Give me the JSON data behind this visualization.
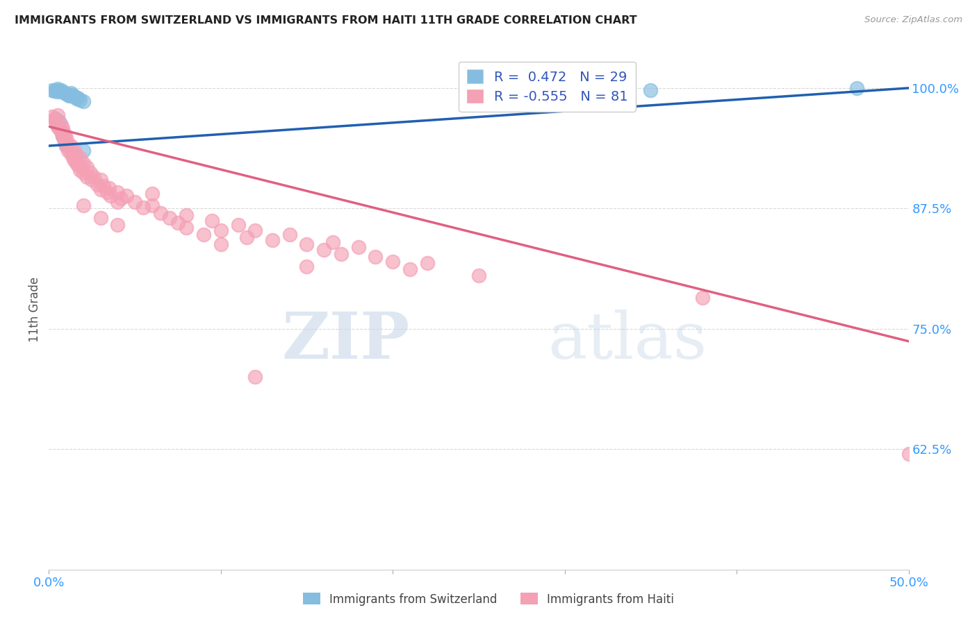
{
  "title": "IMMIGRANTS FROM SWITZERLAND VS IMMIGRANTS FROM HAITI 11TH GRADE CORRELATION CHART",
  "source": "Source: ZipAtlas.com",
  "ylabel": "11th Grade",
  "legend_label_switzerland": "Immigrants from Switzerland",
  "legend_label_haiti": "Immigrants from Haiti",
  "legend_r_swiss": "R =  0.472   N = 29",
  "legend_r_haiti": "R = -0.555   N = 81",
  "watermark_zip": "ZIP",
  "watermark_atlas": "atlas",
  "xlim": [
    0.0,
    0.5
  ],
  "ylim": [
    0.5,
    1.04
  ],
  "blue_color": "#85bde0",
  "blue_line_color": "#2060b0",
  "pink_color": "#f4a0b5",
  "pink_line_color": "#e06080",
  "grid_color": "#d8d8d8",
  "background_color": "#ffffff",
  "title_color": "#222222",
  "axis_label_color": "#3399ff",
  "ylabel_color": "#555555",
  "source_color": "#999999",
  "swiss_trend_x0": 0.0,
  "swiss_trend_y0": 0.94,
  "swiss_trend_x1": 0.5,
  "swiss_trend_y1": 1.0,
  "haiti_trend_x0": 0.0,
  "haiti_trend_y0": 0.96,
  "haiti_trend_x1": 0.5,
  "haiti_trend_y1": 0.737,
  "switzerland_points": [
    [
      0.002,
      0.998
    ],
    [
      0.003,
      0.997
    ],
    [
      0.004,
      0.998
    ],
    [
      0.005,
      0.996
    ],
    [
      0.005,
      0.999
    ],
    [
      0.006,
      0.997
    ],
    [
      0.007,
      0.998
    ],
    [
      0.008,
      0.996
    ],
    [
      0.009,
      0.995
    ],
    [
      0.01,
      0.994
    ],
    [
      0.011,
      0.993
    ],
    [
      0.012,
      0.992
    ],
    [
      0.013,
      0.995
    ],
    [
      0.014,
      0.993
    ],
    [
      0.015,
      0.991
    ],
    [
      0.016,
      0.989
    ],
    [
      0.017,
      0.99
    ],
    [
      0.018,
      0.988
    ],
    [
      0.02,
      0.986
    ],
    [
      0.004,
      0.968
    ],
    [
      0.005,
      0.96
    ],
    [
      0.006,
      0.965
    ],
    [
      0.007,
      0.955
    ],
    [
      0.008,
      0.95
    ],
    [
      0.009,
      0.945
    ],
    [
      0.01,
      0.94
    ],
    [
      0.02,
      0.935
    ],
    [
      0.35,
      0.998
    ],
    [
      0.47,
      1.0
    ]
  ],
  "haiti_points": [
    [
      0.002,
      0.97
    ],
    [
      0.003,
      0.968
    ],
    [
      0.004,
      0.965
    ],
    [
      0.005,
      0.96
    ],
    [
      0.005,
      0.972
    ],
    [
      0.006,
      0.958
    ],
    [
      0.007,
      0.962
    ],
    [
      0.007,
      0.955
    ],
    [
      0.008,
      0.95
    ],
    [
      0.008,
      0.958
    ],
    [
      0.009,
      0.945
    ],
    [
      0.009,
      0.952
    ],
    [
      0.01,
      0.948
    ],
    [
      0.01,
      0.94
    ],
    [
      0.011,
      0.942
    ],
    [
      0.011,
      0.935
    ],
    [
      0.012,
      0.938
    ],
    [
      0.013,
      0.932
    ],
    [
      0.013,
      0.94
    ],
    [
      0.014,
      0.928
    ],
    [
      0.015,
      0.935
    ],
    [
      0.015,
      0.925
    ],
    [
      0.016,
      0.93
    ],
    [
      0.016,
      0.922
    ],
    [
      0.017,
      0.92
    ],
    [
      0.018,
      0.928
    ],
    [
      0.018,
      0.915
    ],
    [
      0.019,
      0.918
    ],
    [
      0.02,
      0.912
    ],
    [
      0.02,
      0.922
    ],
    [
      0.022,
      0.918
    ],
    [
      0.022,
      0.908
    ],
    [
      0.024,
      0.912
    ],
    [
      0.025,
      0.905
    ],
    [
      0.026,
      0.908
    ],
    [
      0.028,
      0.9
    ],
    [
      0.03,
      0.905
    ],
    [
      0.03,
      0.895
    ],
    [
      0.032,
      0.898
    ],
    [
      0.034,
      0.892
    ],
    [
      0.035,
      0.896
    ],
    [
      0.036,
      0.888
    ],
    [
      0.04,
      0.892
    ],
    [
      0.04,
      0.882
    ],
    [
      0.042,
      0.885
    ],
    [
      0.045,
      0.888
    ],
    [
      0.05,
      0.882
    ],
    [
      0.055,
      0.876
    ],
    [
      0.06,
      0.878
    ],
    [
      0.065,
      0.87
    ],
    [
      0.07,
      0.865
    ],
    [
      0.075,
      0.86
    ],
    [
      0.08,
      0.855
    ],
    [
      0.09,
      0.848
    ],
    [
      0.095,
      0.862
    ],
    [
      0.1,
      0.852
    ],
    [
      0.11,
      0.858
    ],
    [
      0.115,
      0.845
    ],
    [
      0.12,
      0.852
    ],
    [
      0.13,
      0.842
    ],
    [
      0.14,
      0.848
    ],
    [
      0.15,
      0.838
    ],
    [
      0.16,
      0.832
    ],
    [
      0.165,
      0.84
    ],
    [
      0.17,
      0.828
    ],
    [
      0.18,
      0.835
    ],
    [
      0.19,
      0.825
    ],
    [
      0.2,
      0.82
    ],
    [
      0.21,
      0.812
    ],
    [
      0.22,
      0.818
    ],
    [
      0.25,
      0.805
    ],
    [
      0.06,
      0.89
    ],
    [
      0.08,
      0.868
    ],
    [
      0.1,
      0.838
    ],
    [
      0.03,
      0.865
    ],
    [
      0.04,
      0.858
    ],
    [
      0.02,
      0.878
    ],
    [
      0.15,
      0.815
    ],
    [
      0.38,
      0.782
    ],
    [
      0.5,
      0.62
    ],
    [
      0.12,
      0.7
    ]
  ]
}
